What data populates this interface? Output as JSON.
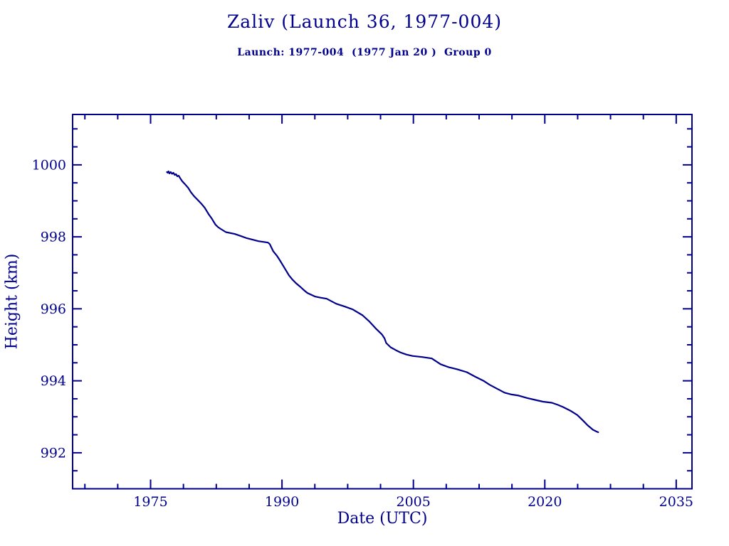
{
  "colors": {
    "accent": "#00008C",
    "background": "#FFFFFF"
  },
  "chart_data": {
    "type": "line",
    "title": "Zaliv (Launch 36, 1977-004)",
    "subtitle": "Launch: 1977-004  (1977 Jan 20 )  Group 0",
    "xlabel": "Date (UTC)",
    "ylabel": "Height (km)",
    "xlim": [
      1966.1,
      2036.8
    ],
    "ylim": [
      991.0,
      1001.4
    ],
    "x_major_ticks": [
      1975,
      1990,
      2005,
      2020,
      2035
    ],
    "x_minor_step": 3.75,
    "y_major_ticks": [
      992,
      994,
      996,
      998,
      1000
    ],
    "y_minor_step": 0.5,
    "grid": false,
    "legend": "none",
    "line_color": "#00008C",
    "series": [
      {
        "name": "height_km",
        "points": [
          [
            1976.87,
            999.8
          ],
          [
            1976.95,
            999.78
          ],
          [
            1977.05,
            999.82
          ],
          [
            1977.15,
            999.76
          ],
          [
            1977.3,
            999.8
          ],
          [
            1977.45,
            999.75
          ],
          [
            1977.6,
            999.78
          ],
          [
            1977.75,
            999.72
          ],
          [
            1977.9,
            999.74
          ],
          [
            1978.05,
            999.68
          ],
          [
            1978.2,
            999.7
          ],
          [
            1978.4,
            999.62
          ],
          [
            1978.6,
            999.55
          ],
          [
            1978.9,
            999.47
          ],
          [
            1979.3,
            999.36
          ],
          [
            1979.6,
            999.24
          ],
          [
            1980.0,
            999.12
          ],
          [
            1980.4,
            999.02
          ],
          [
            1980.8,
            998.92
          ],
          [
            1981.2,
            998.8
          ],
          [
            1981.6,
            998.64
          ],
          [
            1982.0,
            998.5
          ],
          [
            1982.4,
            998.34
          ],
          [
            1982.7,
            998.27
          ],
          [
            1983.0,
            998.22
          ],
          [
            1983.6,
            998.13
          ],
          [
            1984.6,
            998.08
          ],
          [
            1985.2,
            998.03
          ],
          [
            1986.0,
            997.96
          ],
          [
            1987.3,
            997.88
          ],
          [
            1988.4,
            997.84
          ],
          [
            1988.6,
            997.8
          ],
          [
            1989.0,
            997.6
          ],
          [
            1989.4,
            997.48
          ],
          [
            1989.7,
            997.37
          ],
          [
            1990.0,
            997.25
          ],
          [
            1990.3,
            997.13
          ],
          [
            1990.8,
            996.93
          ],
          [
            1991.2,
            996.81
          ],
          [
            1991.6,
            996.71
          ],
          [
            1992.1,
            996.61
          ],
          [
            1992.5,
            996.52
          ],
          [
            1992.9,
            996.44
          ],
          [
            1993.8,
            996.34
          ],
          [
            1994.4,
            996.31
          ],
          [
            1995.1,
            996.28
          ],
          [
            1996.2,
            996.14
          ],
          [
            1997.2,
            996.06
          ],
          [
            1998.1,
            995.98
          ],
          [
            1999.2,
            995.82
          ],
          [
            2000.0,
            995.64
          ],
          [
            2000.8,
            995.43
          ],
          [
            2001.4,
            995.29
          ],
          [
            2001.7,
            995.18
          ],
          [
            2001.9,
            995.05
          ],
          [
            2002.4,
            994.93
          ],
          [
            2003.0,
            994.85
          ],
          [
            2003.5,
            994.79
          ],
          [
            2004.2,
            994.73
          ],
          [
            2004.9,
            994.69
          ],
          [
            2006.0,
            994.66
          ],
          [
            2007.1,
            994.62
          ],
          [
            2008.1,
            994.46
          ],
          [
            2009.0,
            994.38
          ],
          [
            2010.0,
            994.32
          ],
          [
            2011.1,
            994.24
          ],
          [
            2012.0,
            994.12
          ],
          [
            2013.0,
            994.0
          ],
          [
            2013.7,
            993.89
          ],
          [
            2014.4,
            993.8
          ],
          [
            2015.4,
            993.67
          ],
          [
            2016.2,
            993.62
          ],
          [
            2017.0,
            993.59
          ],
          [
            2018.0,
            993.52
          ],
          [
            2018.9,
            993.47
          ],
          [
            2019.8,
            993.42
          ],
          [
            2020.8,
            993.39
          ],
          [
            2021.5,
            993.33
          ],
          [
            2022.1,
            993.27
          ],
          [
            2022.9,
            993.17
          ],
          [
            2023.7,
            993.05
          ],
          [
            2024.3,
            992.91
          ],
          [
            2024.9,
            992.76
          ],
          [
            2025.5,
            992.64
          ],
          [
            2025.9,
            992.59
          ],
          [
            2026.1,
            992.57
          ]
        ]
      }
    ]
  }
}
